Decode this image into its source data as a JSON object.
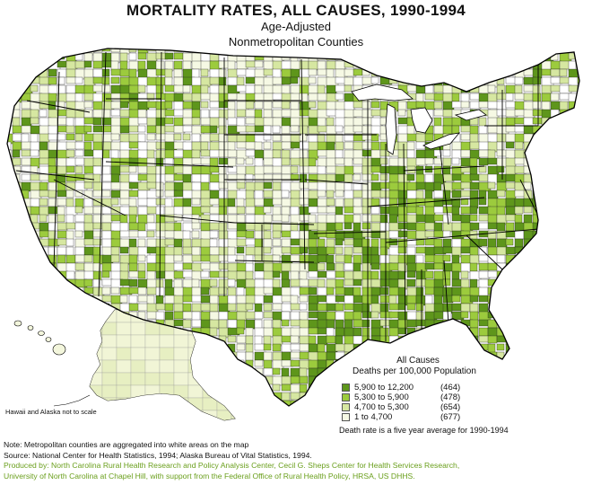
{
  "header": {
    "title": "MORTALITY RATES, ALL CAUSES, 1990-1994",
    "subtitle1": "Age-Adjusted",
    "subtitle2": "Nonmetropolitan Counties"
  },
  "legend": {
    "title": "All Causes",
    "subtitle": "Deaths per 100,000 Population",
    "classes": [
      {
        "range": "5,900  to  12,200",
        "count": "(464)",
        "color": "#5e961b"
      },
      {
        "range": "5,300  to    5,900",
        "count": "(478)",
        "color": "#9ccb3d"
      },
      {
        "range": "4,700  to    5,300",
        "count": "(654)",
        "color": "#d6e7a1"
      },
      {
        "range": "1  to    4,700",
        "count": "(677)",
        "color": "#f6f9e4"
      }
    ],
    "rate_note": "Death rate is a five year average for 1990-1994"
  },
  "map": {
    "scale_note": "Hawaii and Alaska not to scale",
    "colors": {
      "highest": "#5e961b",
      "high": "#9ccb3d",
      "mid": "#d6e7a1",
      "low": "#f6f9e4",
      "metro": "#ffffff",
      "border": "#000000"
    }
  },
  "notes": {
    "line1": "Note: Metropolitan counties are aggregated into white areas on the map",
    "line2": "Source: National Center for Health Statistics, 1994; Alaska Bureau of Vital Statistics, 1994.",
    "line3": "Produced by: North Carolina Rural Health Research and Policy Analysis Center, Cecil G. Sheps Center for Health Services Research,",
    "line4": "University of North Carolina at Chapel Hill, with support from the Federal Office of Rural Health Policy, HRSA, US DHHS."
  }
}
